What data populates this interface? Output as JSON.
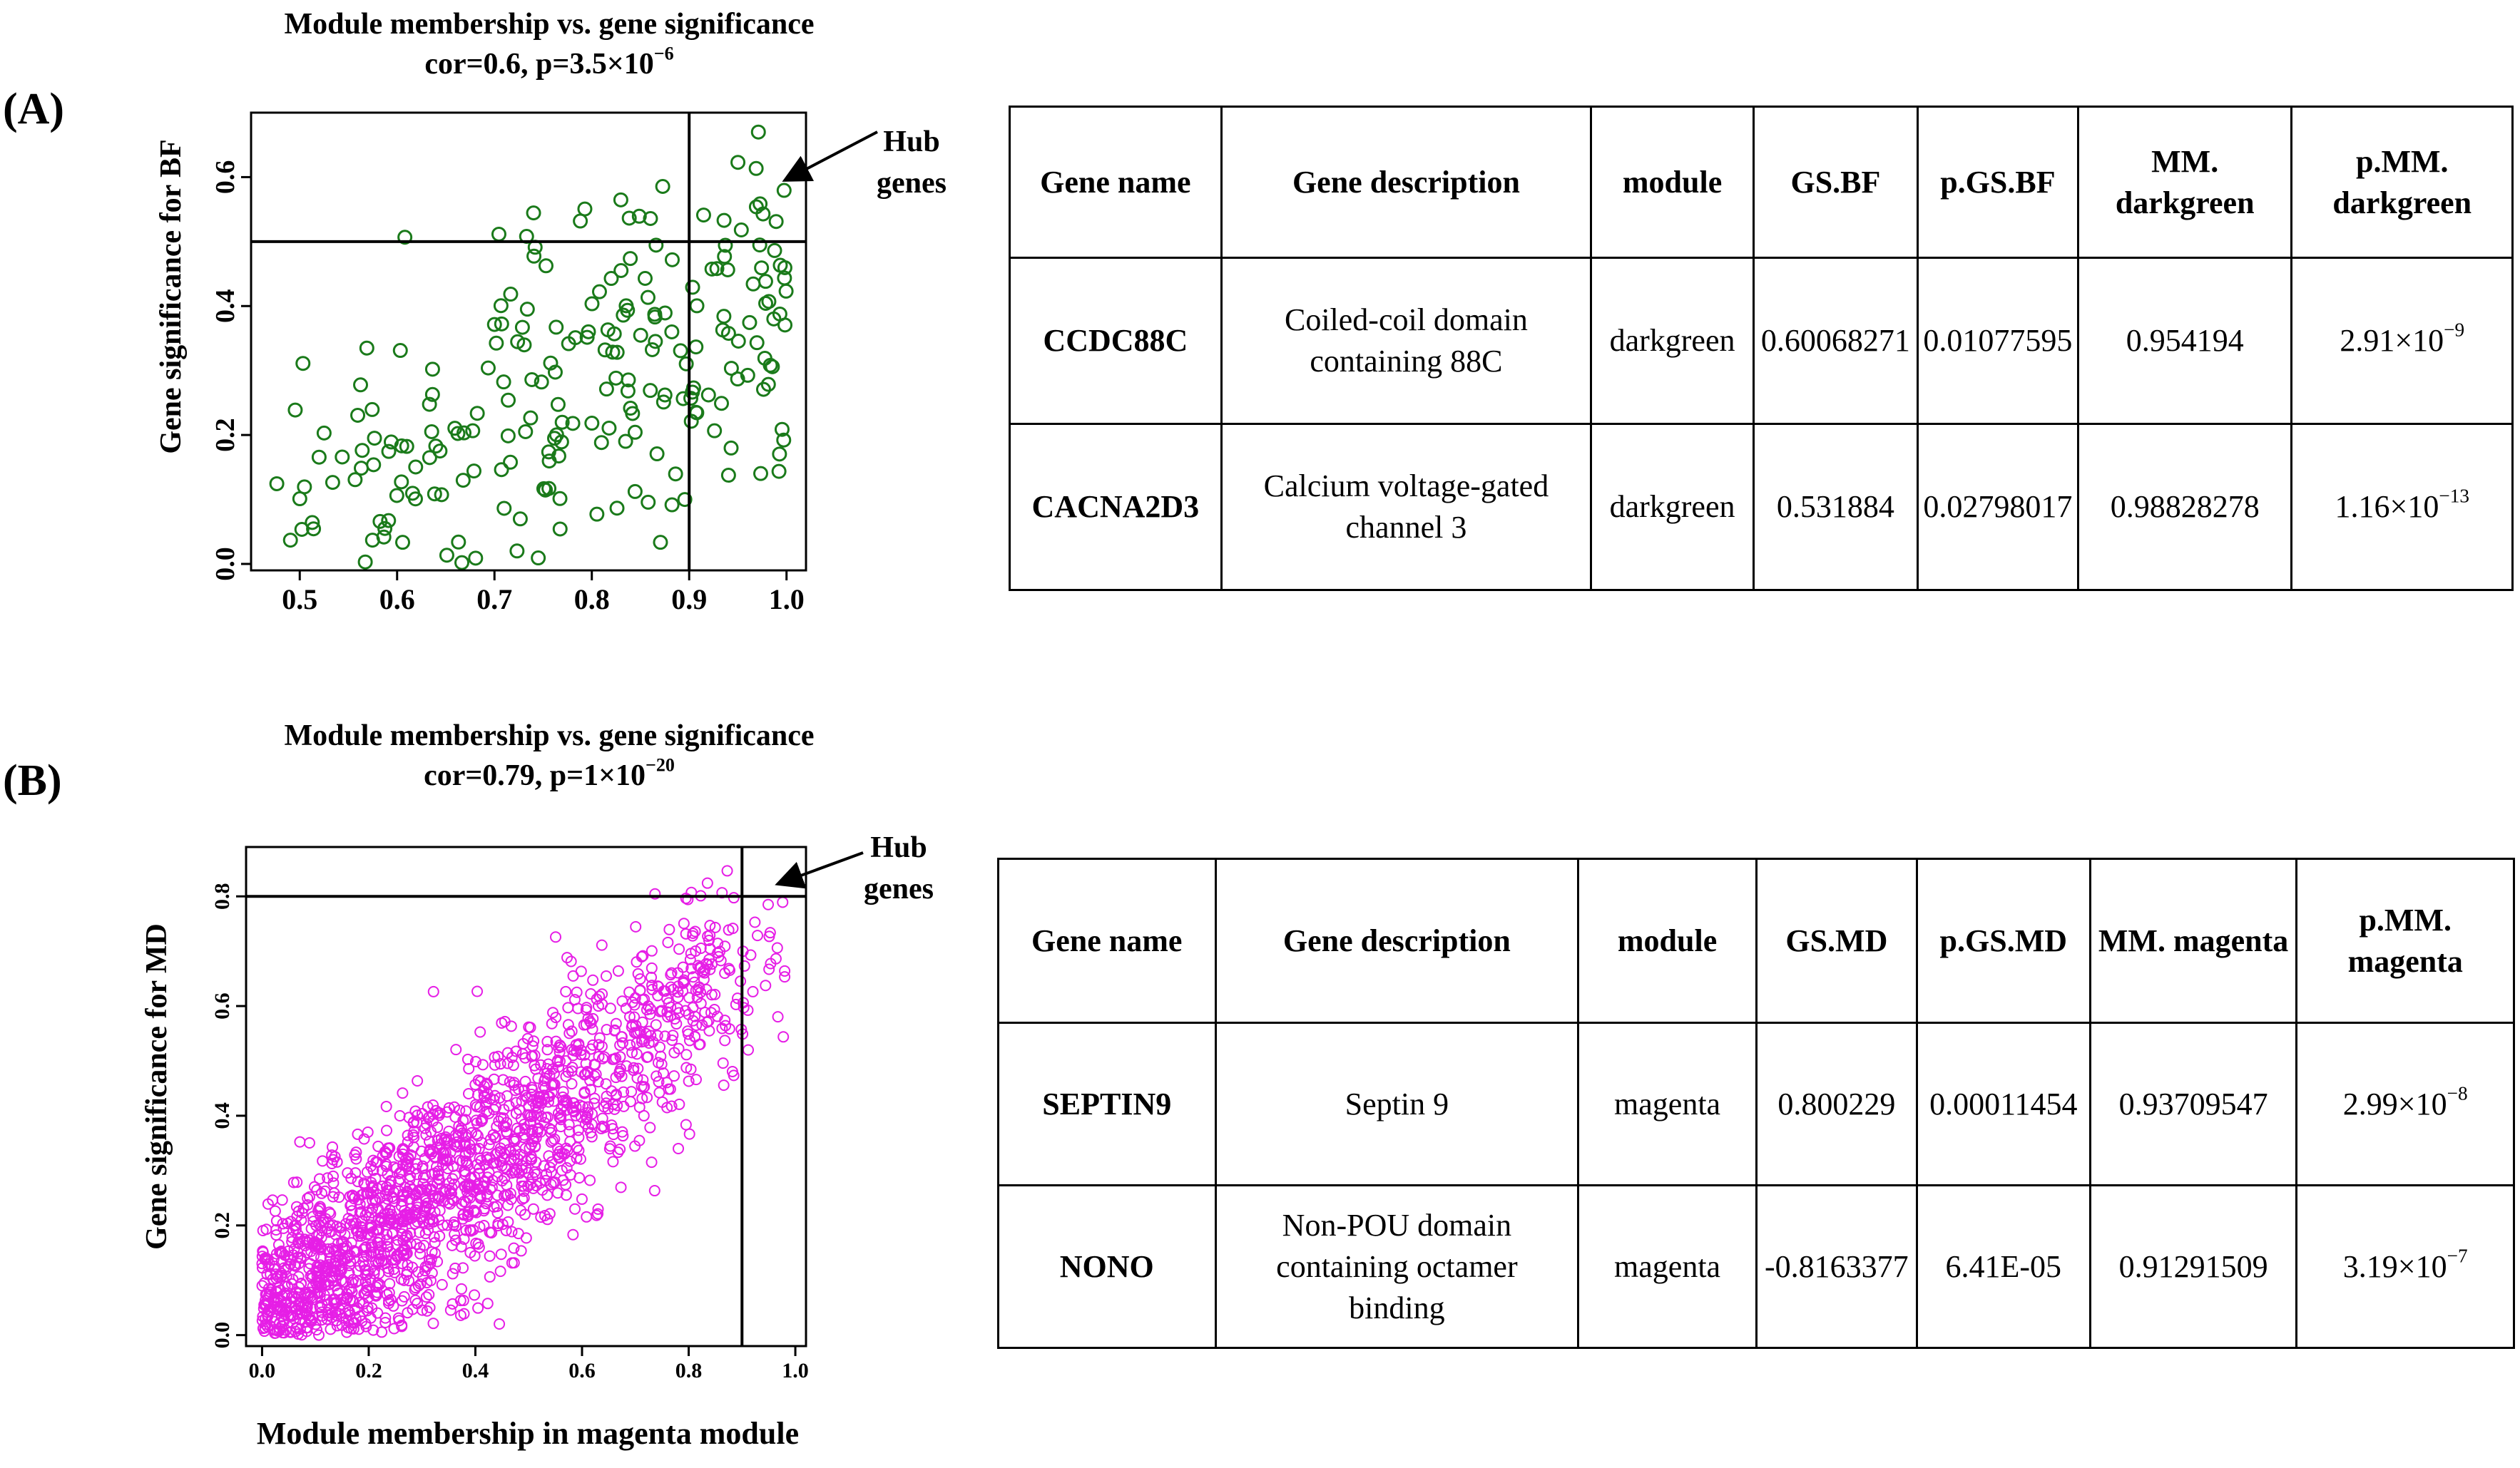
{
  "panel_a": {
    "label": "(A)",
    "hub_label_line1": "Hub",
    "hub_label_line2": "genes",
    "table": {
      "headers": [
        "Gene name",
        "Gene description",
        "module",
        "GS.BF",
        "p.GS.BF",
        "MM. darkgreen",
        "p.MM. darkgreen"
      ],
      "rows": [
        {
          "gene": "CCDC88C",
          "desc_line1": "Coiled-coil domain",
          "desc_line2": "containing 88C",
          "desc_line3": "",
          "module": "darkgreen",
          "gs": "0.60068271",
          "p_gs": "0.01077595",
          "mm": "0.954194",
          "p_mm_base": "2.91×10",
          "p_mm_exp": "−9"
        },
        {
          "gene": "CACNA2D3",
          "desc_line1": "Calcium voltage-gated",
          "desc_line2": "channel 3",
          "desc_line3": "",
          "module": "darkgreen",
          "gs": "0.531884",
          "p_gs": "0.02798017",
          "mm": "0.98828278",
          "p_mm_base": "1.16×10",
          "p_mm_exp": "−13"
        }
      ]
    }
  },
  "panel_b": {
    "label": "(B)",
    "hub_label_line1": "Hub",
    "hub_label_line2": "genes",
    "table": {
      "headers": [
        "Gene name",
        "Gene description",
        "module",
        "GS.MD",
        "p.GS.MD",
        "MM. magenta",
        "p.MM. magenta"
      ],
      "rows": [
        {
          "gene": "SEPTIN9",
          "desc_line1": "Septin 9",
          "desc_line2": "",
          "desc_line3": "",
          "module": "magenta",
          "gs": "0.800229",
          "p_gs": "0.00011454",
          "mm": "0.93709547",
          "p_mm_base": "2.99×10",
          "p_mm_exp": "−8"
        },
        {
          "gene": "NONO",
          "desc_line1": "Non-POU domain",
          "desc_line2": "containing octamer",
          "desc_line3": "binding",
          "module": "magenta",
          "gs": "-0.8163377",
          "p_gs": "6.41E-05",
          "mm": "0.91291509",
          "p_mm_base": "3.19×10",
          "p_mm_exp": "−7"
        }
      ]
    }
  },
  "chart_data": [
    {
      "type": "scatter",
      "title": "Module membership vs. gene significance",
      "subtitle_base": "cor=0.6, p=3.5×10",
      "subtitle_exp": "−6",
      "xlabel": "",
      "ylabel": "Gene significance for BF",
      "xlim": [
        0.45,
        1.02
      ],
      "ylim": [
        -0.01,
        0.7
      ],
      "xticks": [
        "0.5",
        "0.6",
        "0.7",
        "0.8",
        "0.9",
        "1.0"
      ],
      "yticks": [
        "0.0",
        "0.2",
        "0.4",
        "0.6"
      ],
      "threshold_x": 0.9,
      "threshold_y": 0.5,
      "color": "#1a7a1a",
      "n_points": 230,
      "correlation": 0.6
    },
    {
      "type": "scatter",
      "title": "Module membership vs. gene significance",
      "subtitle_base": "cor=0.79, p=1×10",
      "subtitle_exp": "−20",
      "xlabel": "Module membership in magenta module",
      "ylabel": "Gene significance for MD",
      "xlim": [
        -0.03,
        1.02
      ],
      "ylim": [
        -0.02,
        0.89
      ],
      "xticks": [
        "0.0",
        "0.2",
        "0.4",
        "0.6",
        "0.8",
        "1.0"
      ],
      "yticks": [
        "0.0",
        "0.2",
        "0.4",
        "0.6",
        "0.8"
      ],
      "threshold_x": 0.9,
      "threshold_y": 0.8,
      "color": "#e61ee6",
      "n_points": 1800,
      "correlation": 0.79
    }
  ]
}
